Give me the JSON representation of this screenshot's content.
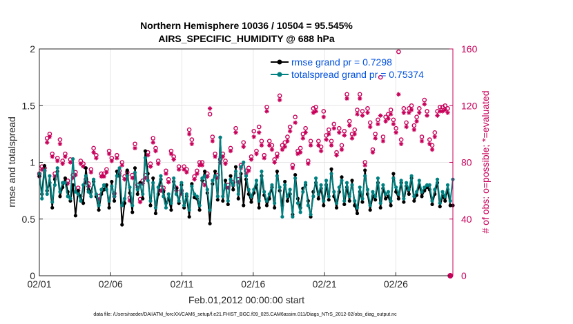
{
  "chart_data": {
    "type": "line",
    "title": "Northern Hemisphere 10036 / 10504 = 95.545%",
    "subtitle": "AIRS_SPECIFIC_HUMIDITY @ 688 hPa",
    "xlabel": "Feb.01,2012 00:00:00 start",
    "ylabel": "rmse and totalspread",
    "ylabel_right": "# of obs: o=possible; *=evaluated",
    "xlim": [
      1,
      30
    ],
    "ylim": [
      0,
      2
    ],
    "ylim_right": [
      0,
      160
    ],
    "x_ticks": [
      1,
      6,
      11,
      16,
      21,
      26
    ],
    "x_tick_labels": [
      "02/01",
      "02/06",
      "02/11",
      "02/16",
      "02/21",
      "02/26"
    ],
    "y_ticks": [
      0,
      0.5,
      1,
      1.5,
      2
    ],
    "y_tick_labels": [
      "0",
      "0.5",
      "1",
      "1.5",
      "2"
    ],
    "y_right_ticks": [
      0,
      40,
      80,
      120,
      160
    ],
    "y_right_tick_labels": [
      "0",
      "40",
      "80",
      "120",
      "160"
    ],
    "grid": true,
    "legend_position": "top-right",
    "series": [
      {
        "name": "rmse",
        "legend": "rmse grand pr = 0.7298",
        "color": "#000000",
        "values": [
          0.88,
          0.72,
          0.97,
          0.75,
          0.82,
          0.6,
          0.85,
          0.92,
          0.7,
          0.78,
          0.86,
          0.74,
          0.66,
          0.8,
          0.53,
          0.75,
          0.7,
          0.64,
          0.95,
          0.76,
          0.74,
          0.83,
          0.7,
          0.58,
          0.72,
          0.76,
          0.8,
          0.6,
          0.83,
          0.66,
          0.92,
          0.88,
          0.45,
          0.64,
          0.93,
          0.73,
          0.56,
          0.95,
          0.72,
          0.82,
          0.68,
          1.1,
          0.9,
          0.62,
          0.86,
          0.55,
          0.72,
          0.85,
          0.74,
          0.64,
          0.68,
          0.58,
          0.83,
          0.77,
          0.64,
          0.8,
          0.6,
          0.7,
          0.52,
          0.81,
          0.69,
          0.68,
          0.58,
          0.84,
          0.92,
          0.73,
          0.46,
          0.81,
          0.92,
          0.67,
          1.22,
          0.66,
          0.84,
          0.63,
          0.88,
          0.76,
          0.96,
          0.68,
          0.9,
          0.62,
          0.85,
          0.72,
          0.65,
          0.73,
          0.8,
          0.6,
          0.88,
          0.71,
          0.62,
          0.68,
          0.78,
          0.6,
          0.92,
          0.75,
          0.62,
          0.83,
          0.66,
          0.72,
          0.54,
          0.89,
          0.68,
          0.6,
          0.77,
          0.8,
          0.66,
          0.52,
          0.74,
          0.82,
          0.68,
          0.77,
          0.62,
          0.8,
          0.67,
          0.94,
          0.7,
          0.6,
          0.74,
          0.87,
          0.63,
          0.78,
          0.66,
          0.84,
          0.62,
          0.55,
          0.74,
          0.65,
          0.93,
          0.72,
          0.58,
          0.7,
          0.67,
          0.82,
          0.6,
          0.77,
          0.68,
          0.7,
          0.62,
          0.9,
          0.74,
          0.68,
          0.82,
          0.65,
          0.79,
          0.72,
          0.86,
          0.66,
          0.71,
          0.8,
          0.7,
          0.75,
          0.78,
          0.76,
          0.63,
          0.72,
          0.82,
          0.61,
          0.7,
          0.66,
          0.76,
          0.62,
          0.62
        ]
      },
      {
        "name": "totalspread",
        "legend": "totalspread grand pr = 0.75374",
        "color": "#008080",
        "values": [
          0.9,
          0.68,
          0.93,
          0.72,
          0.88,
          0.65,
          0.8,
          0.95,
          0.74,
          0.82,
          0.82,
          0.7,
          0.68,
          1.03,
          0.74,
          0.72,
          0.66,
          0.8,
          0.88,
          0.74,
          0.7,
          0.85,
          0.72,
          0.62,
          0.76,
          0.8,
          0.76,
          0.66,
          0.79,
          0.7,
          0.88,
          0.95,
          0.62,
          0.68,
          0.88,
          0.78,
          0.62,
          0.91,
          0.76,
          0.8,
          0.72,
          1.04,
          0.84,
          0.66,
          0.82,
          0.6,
          0.78,
          0.88,
          0.7,
          0.6,
          0.72,
          0.64,
          0.86,
          0.72,
          0.66,
          0.82,
          0.62,
          0.72,
          0.58,
          0.79,
          0.72,
          0.7,
          0.62,
          0.86,
          0.88,
          0.76,
          0.58,
          0.84,
          0.88,
          0.7,
          1.22,
          0.7,
          0.8,
          0.66,
          0.85,
          0.8,
          0.92,
          0.72,
          0.96,
          1.0,
          0.88,
          0.76,
          0.7,
          0.76,
          0.84,
          0.66,
          0.92,
          0.74,
          0.66,
          0.72,
          0.8,
          0.64,
          0.88,
          0.78,
          0.52,
          0.8,
          0.7,
          0.76,
          0.52,
          0.86,
          0.64,
          0.56,
          0.74,
          0.82,
          0.62,
          0.54,
          0.7,
          0.86,
          0.72,
          0.8,
          0.66,
          0.84,
          0.7,
          0.9,
          0.74,
          0.64,
          0.78,
          0.84,
          0.66,
          0.82,
          0.7,
          0.8,
          0.66,
          0.6,
          0.78,
          0.68,
          0.88,
          0.76,
          0.62,
          0.74,
          0.7,
          0.86,
          0.64,
          0.8,
          0.72,
          0.74,
          0.66,
          0.86,
          0.78,
          0.72,
          0.84,
          0.68,
          0.82,
          0.76,
          0.88,
          0.7,
          0.74,
          0.84,
          0.74,
          0.78,
          0.8,
          0.8,
          0.66,
          0.76,
          0.85,
          0.64,
          0.74,
          0.7,
          0.8,
          0.66,
          0.85
        ]
      },
      {
        "name": "obs_possible",
        "marker": "o",
        "color": "#c8005a",
        "values": [
          72,
          77,
          76,
          97,
          100,
          86,
          72,
          83,
          96,
          81,
          86,
          67,
          82,
          71,
          73,
          62,
          81,
          79,
          68,
          65,
          75,
          90,
          85,
          56,
          72,
          72,
          75,
          88,
          83,
          58,
          85,
          74,
          80,
          70,
          73,
          55,
          71,
          93,
          64,
          54,
          67,
          71,
          87,
          79,
          97,
          90,
          81,
          62,
          62,
          74,
          68,
          88,
          84,
          62,
          77,
          60,
          77,
          75,
          103,
          96,
          70,
          74,
          80,
          80,
          66,
          72,
          114,
          98,
          86,
          71,
          82,
          86,
          81,
          64,
          90,
          66,
          104,
          68,
          78,
          94,
          74,
          76,
          84,
          102,
          88,
          105,
          95,
          85,
          119,
          95,
          92,
          82,
          86,
          127,
          92,
          94,
          98,
          105,
          78,
          112,
          88,
          90,
          100,
          104,
          81,
          95,
          118,
          119,
          95,
          91,
          116,
          99,
          103,
          95,
          107,
          87,
          104,
          92,
          102,
          128,
          109,
          100,
          103,
          117,
          128,
          116,
          80,
          118,
          108,
          89,
          100,
          110,
          140,
          98,
          112,
          114,
          117,
          110,
          104,
          158,
          96,
          118,
          108,
          118,
          120,
          106,
          112,
          118,
          98,
          124,
          116,
          96,
          92,
          101,
          116,
          119,
          119,
          120,
          118,
          0
        ]
      },
      {
        "name": "obs_evaluated",
        "marker": "*",
        "color": "#c8005a",
        "values": [
          70,
          75,
          74,
          94,
          98,
          84,
          70,
          81,
          93,
          79,
          84,
          65,
          80,
          69,
          71,
          60,
          79,
          77,
          66,
          63,
          73,
          87,
          83,
          54,
          70,
          70,
          73,
          86,
          81,
          56,
          83,
          72,
          78,
          68,
          71,
          53,
          69,
          90,
          62,
          52,
          65,
          69,
          85,
          77,
          94,
          88,
          79,
          60,
          60,
          72,
          66,
          86,
          82,
          60,
          75,
          58,
          75,
          73,
          100,
          93,
          68,
          72,
          78,
          78,
          64,
          70,
          118,
          95,
          84,
          69,
          80,
          84,
          79,
          62,
          88,
          64,
          101,
          66,
          76,
          91,
          72,
          74,
          82,
          98,
          86,
          101,
          92,
          83,
          116,
          92,
          89,
          80,
          84,
          124,
          89,
          91,
          95,
          102,
          76,
          108,
          86,
          87,
          97,
          101,
          79,
          92,
          115,
          116,
          92,
          88,
          112,
          96,
          100,
          92,
          104,
          85,
          101,
          89,
          99,
          125,
          106,
          97,
          100,
          114,
          125,
          113,
          78,
          115,
          105,
          87,
          97,
          107,
          113,
          95,
          109,
          111,
          114,
          107,
          101,
          128,
          93,
          115,
          105,
          115,
          117,
          103,
          109,
          115,
          95,
          121,
          113,
          93,
          89,
          98,
          113,
          116,
          116,
          117,
          115,
          0
        ]
      }
    ]
  },
  "footer": "data file: /Users/raeder/DAI/ATM_forcXX/CAM6_setup/f.e21.FHIST_BGC.f09_025.CAM6assim.011/Diags_NTrS_2012-02/obs_diag_output.nc"
}
